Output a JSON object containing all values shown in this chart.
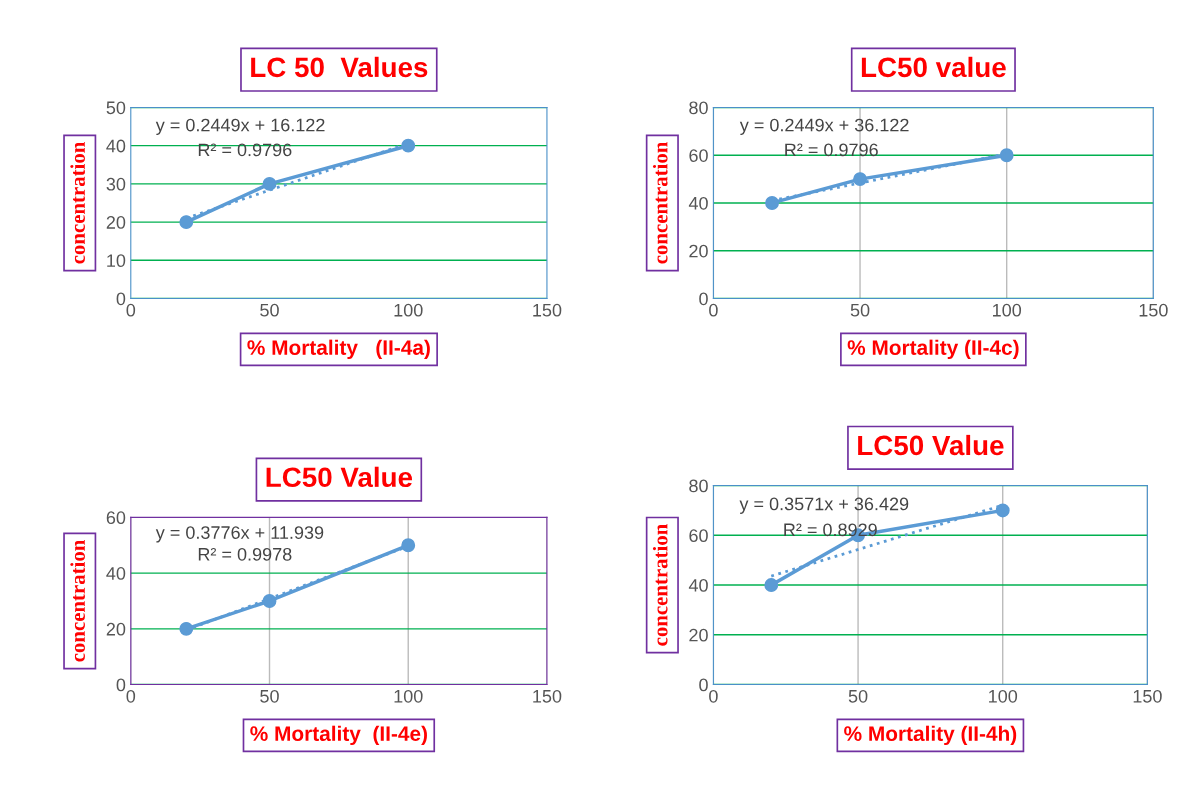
{
  "chart_data": [
    {
      "type": "line",
      "title": "LC 50  Values",
      "xlabel": "% Mortality   (II-4a)",
      "ylabel": "concentration",
      "xlim": [
        0,
        150
      ],
      "xticks": [
        0,
        50,
        100,
        150
      ],
      "ylim": [
        0,
        50
      ],
      "yticks": [
        0,
        10,
        20,
        30,
        40,
        50
      ],
      "grid": "y",
      "annotations": [
        "y = 0.2449x + 16.122",
        "R² = 0.9796"
      ],
      "series": [
        {
          "x": [
            20,
            50,
            100
          ],
          "values": [
            20,
            30,
            40
          ],
          "color": "#5b9bd5",
          "marker": "circle",
          "line_style": "solid"
        },
        {
          "x": [
            20,
            100
          ],
          "values": [
            21.0,
            40.6
          ],
          "color": "#5b9bd5",
          "marker": "none",
          "line_style": "dotted"
        }
      ]
    },
    {
      "type": "line",
      "title": "LC50 value",
      "xlabel": "% Mortality (II-4c)",
      "ylabel": "concentration",
      "xlim": [
        0,
        150
      ],
      "xticks": [
        0,
        50,
        100,
        150
      ],
      "ylim": [
        0,
        80
      ],
      "yticks": [
        0,
        20,
        40,
        60,
        80
      ],
      "grid": true,
      "annotations": [
        "y = 0.2449x + 36.122",
        "R² = 0.9796"
      ],
      "series": [
        {
          "x": [
            20,
            50,
            100
          ],
          "values": [
            40,
            50,
            60
          ],
          "color": "#5b9bd5",
          "marker": "circle",
          "line_style": "solid"
        },
        {
          "x": [
            20,
            100
          ],
          "values": [
            41.0,
            60.6
          ],
          "color": "#5b9bd5",
          "marker": "none",
          "line_style": "dotted"
        }
      ]
    },
    {
      "type": "line",
      "title": "LC50 Value",
      "xlabel": "% Mortality  (II-4e)",
      "ylabel": "concentration",
      "xlim": [
        0,
        150
      ],
      "xticks": [
        0,
        50,
        100,
        150
      ],
      "ylim": [
        0,
        60
      ],
      "yticks": [
        0,
        20,
        40,
        60
      ],
      "grid": true,
      "annotations": [
        "y = 0.3776x + 11.939",
        "R² = 0.9978"
      ],
      "series": [
        {
          "x": [
            20,
            50,
            100
          ],
          "values": [
            20,
            30,
            50
          ],
          "color": "#5b9bd5",
          "marker": "circle",
          "line_style": "solid"
        },
        {
          "x": [
            20,
            100
          ],
          "values": [
            19.5,
            49.7
          ],
          "color": "#5b9bd5",
          "marker": "none",
          "line_style": "dotted"
        }
      ]
    },
    {
      "type": "line",
      "title": "LC50 Value",
      "xlabel": "% Mortality (II-4h)",
      "ylabel": "concentration",
      "xlim": [
        0,
        150
      ],
      "xticks": [
        0,
        50,
        100,
        150
      ],
      "ylim": [
        0,
        80
      ],
      "yticks": [
        0,
        20,
        40,
        60,
        80
      ],
      "grid": true,
      "annotations": [
        "y = 0.3571x + 36.429",
        "R² = 0.8929"
      ],
      "series": [
        {
          "x": [
            20,
            50,
            100
          ],
          "values": [
            40,
            60,
            70
          ],
          "color": "#5b9bd5",
          "marker": "circle",
          "line_style": "solid"
        },
        {
          "x": [
            20,
            100
          ],
          "values": [
            43.6,
            72.1
          ],
          "color": "#5b9bd5",
          "marker": "none",
          "line_style": "dotted"
        }
      ]
    }
  ]
}
